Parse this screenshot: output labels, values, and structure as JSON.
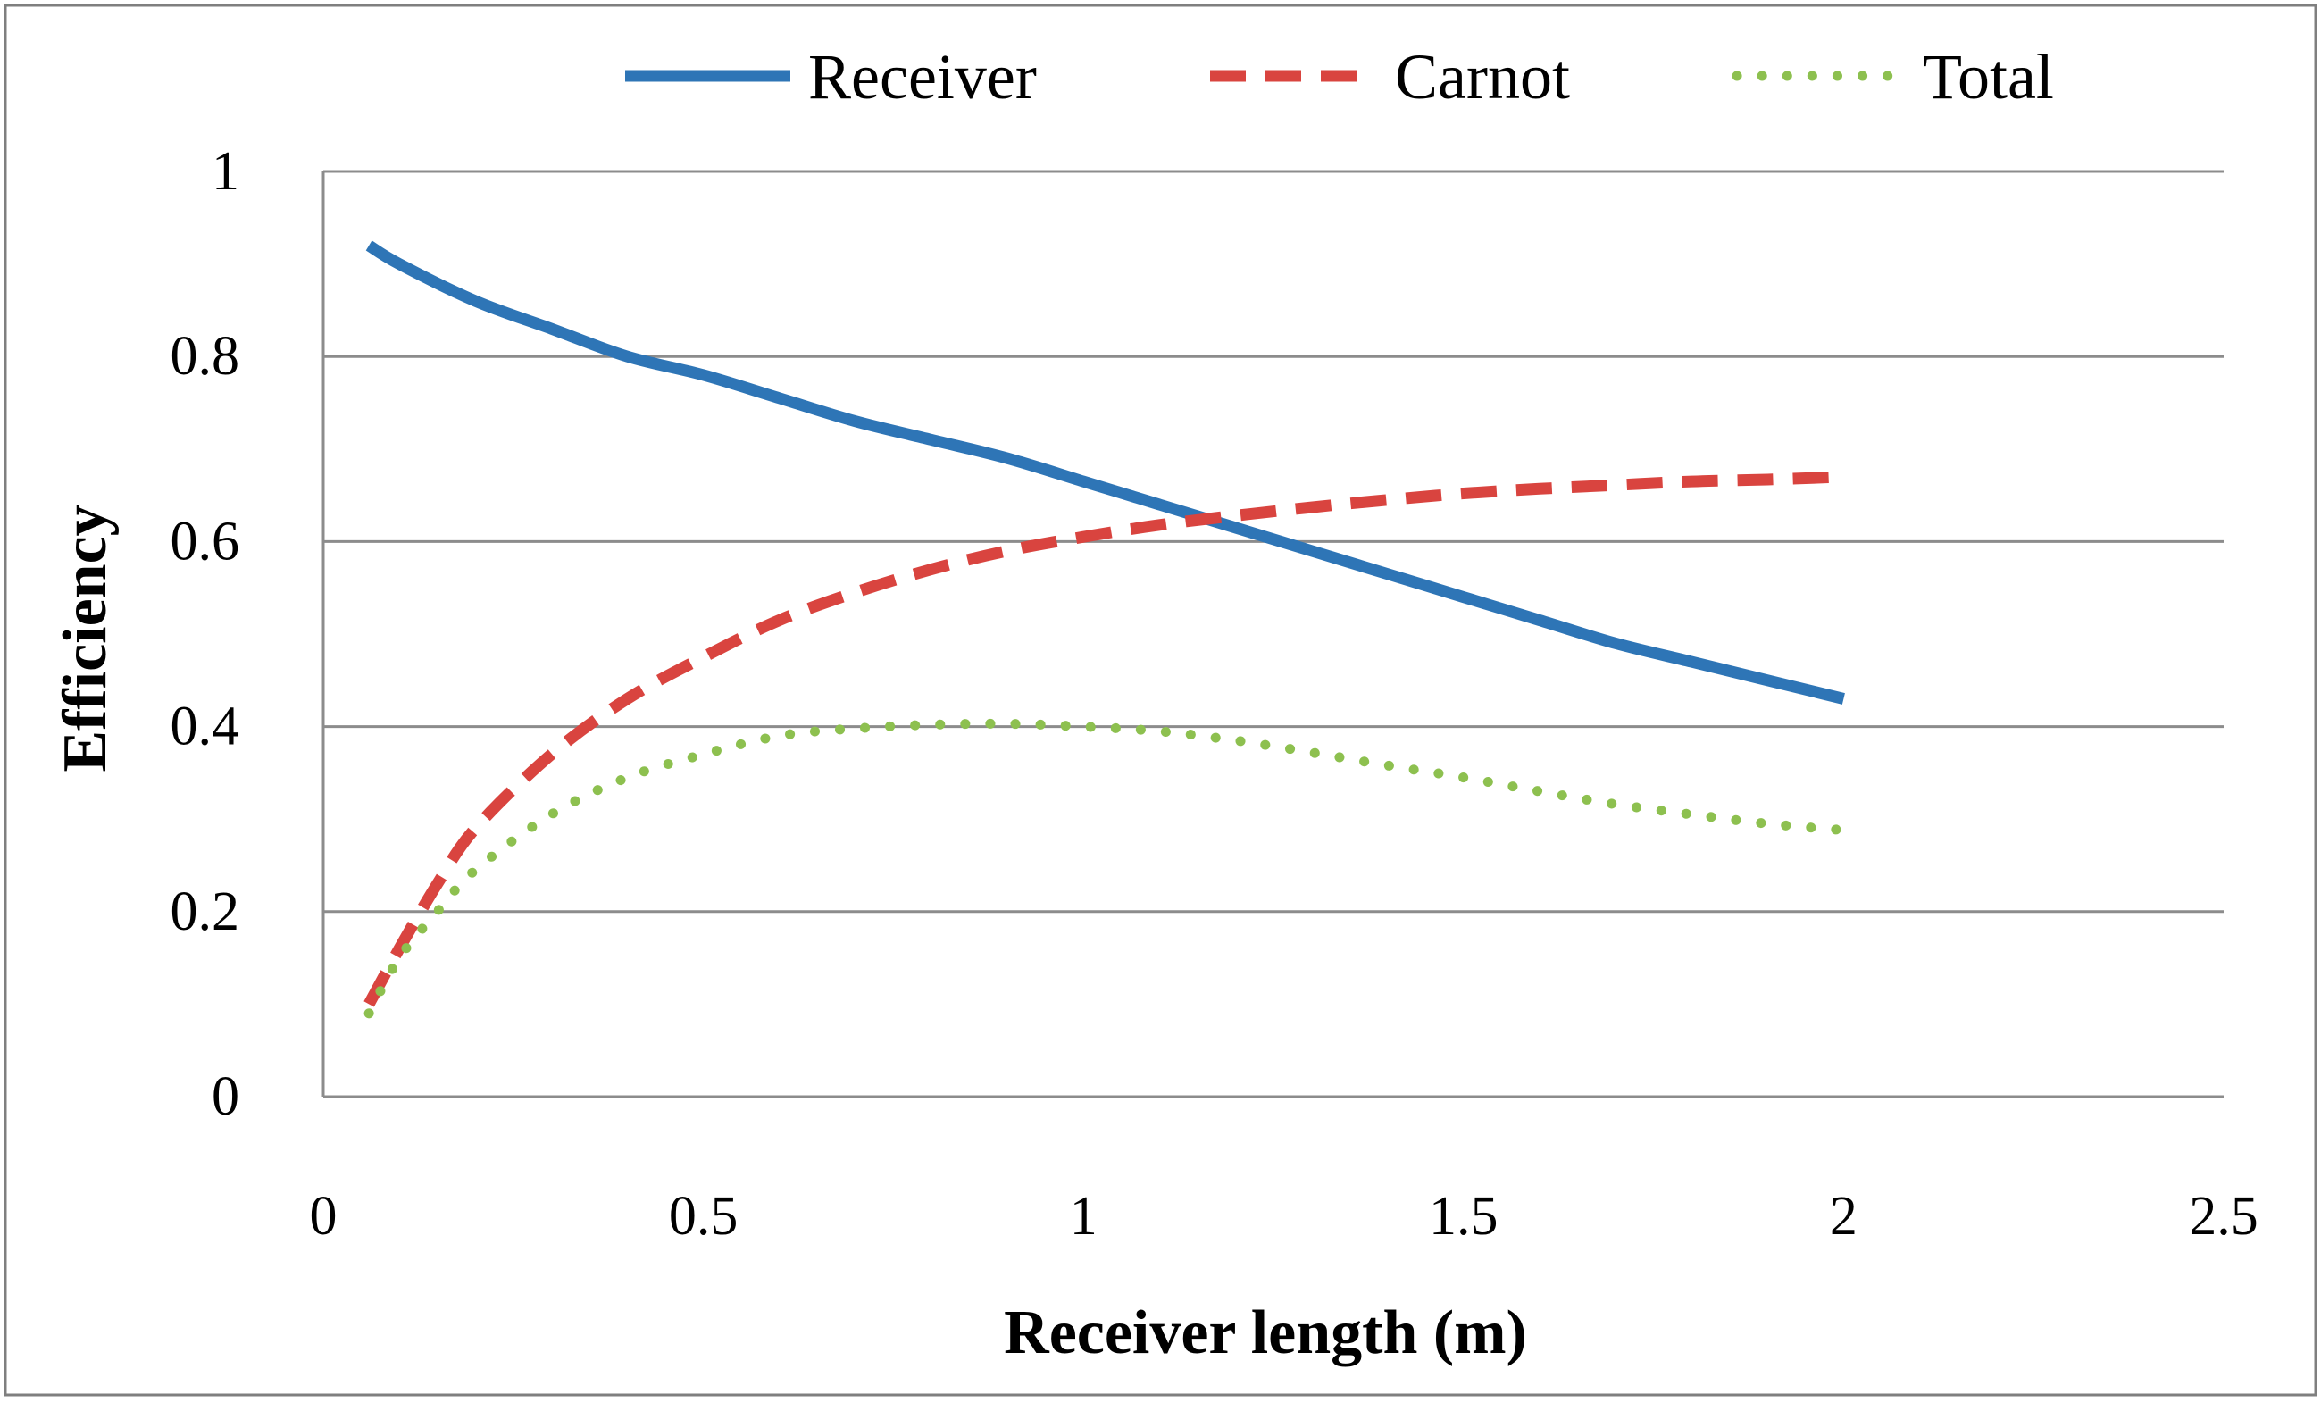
{
  "chart_data": {
    "type": "line",
    "title": "",
    "xlabel": "Receiver length (m)",
    "ylabel": "Efficiency",
    "xlim": [
      0,
      2.5
    ],
    "ylim": [
      0,
      1
    ],
    "x_ticks": [
      "0",
      "0.5",
      "1",
      "1.5",
      "2",
      "2.5"
    ],
    "y_ticks": [
      "0",
      "0.2",
      "0.4",
      "0.6",
      "0.8",
      "1"
    ],
    "grid": "horizontal",
    "legend_position": "top",
    "series": [
      {
        "name": "Receiver",
        "color": "#2E75B6",
        "style": "solid",
        "x": [
          0.06,
          0.1,
          0.2,
          0.3,
          0.4,
          0.5,
          0.6,
          0.7,
          0.8,
          0.9,
          1.0,
          1.1,
          1.2,
          1.3,
          1.4,
          1.5,
          1.6,
          1.7,
          1.8,
          1.9,
          2.0
        ],
        "values": [
          0.92,
          0.9,
          0.86,
          0.83,
          0.8,
          0.78,
          0.755,
          0.73,
          0.71,
          0.69,
          0.665,
          0.64,
          0.615,
          0.59,
          0.565,
          0.54,
          0.515,
          0.49,
          0.47,
          0.45,
          0.43
        ]
      },
      {
        "name": "Carnot",
        "color": "#D9443F",
        "style": "dashed",
        "x": [
          0.06,
          0.1,
          0.15,
          0.2,
          0.3,
          0.4,
          0.5,
          0.6,
          0.7,
          0.8,
          0.9,
          1.0,
          1.1,
          1.2,
          1.3,
          1.4,
          1.5,
          1.6,
          1.7,
          1.8,
          1.9,
          2.0
        ],
        "values": [
          0.1,
          0.16,
          0.23,
          0.29,
          0.37,
          0.43,
          0.475,
          0.515,
          0.545,
          0.57,
          0.59,
          0.605,
          0.618,
          0.628,
          0.637,
          0.645,
          0.652,
          0.657,
          0.661,
          0.665,
          0.667,
          0.67
        ]
      },
      {
        "name": "Total",
        "color": "#8DC04F",
        "style": "dotted",
        "x": [
          0.06,
          0.1,
          0.15,
          0.2,
          0.3,
          0.4,
          0.5,
          0.6,
          0.7,
          0.8,
          0.9,
          1.0,
          1.1,
          1.2,
          1.3,
          1.4,
          1.5,
          1.6,
          1.7,
          1.8,
          1.9,
          2.0
        ],
        "values": [
          0.09,
          0.15,
          0.2,
          0.245,
          0.305,
          0.345,
          0.37,
          0.39,
          0.398,
          0.402,
          0.403,
          0.4,
          0.395,
          0.385,
          0.372,
          0.358,
          0.345,
          0.33,
          0.316,
          0.305,
          0.295,
          0.288
        ]
      }
    ]
  }
}
